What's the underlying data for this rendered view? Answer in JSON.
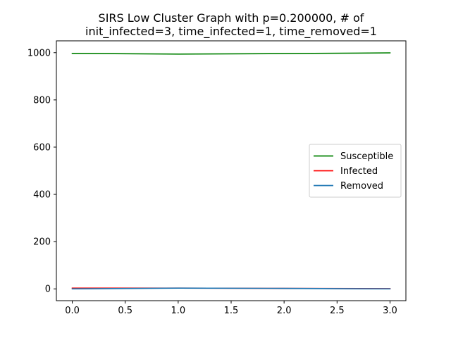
{
  "chart_data": {
    "type": "line",
    "title_lines": [
      "SIRS Low Cluster Graph with p=0.200000, # of",
      "init_infected=3, time_infected=1, time_removed=1"
    ],
    "xlabel": "",
    "ylabel": "",
    "x": [
      0,
      1,
      2,
      3
    ],
    "xlim": [
      -0.15,
      3.15
    ],
    "ylim": [
      -50,
      1050
    ],
    "x_ticks": [
      0,
      0.5,
      1,
      1.5,
      2,
      2.5,
      3
    ],
    "x_tick_labels": [
      "0.0",
      "0.5",
      "1.0",
      "1.5",
      "2.0",
      "2.5",
      "3.0"
    ],
    "y_ticks": [
      0,
      200,
      400,
      600,
      800,
      1000
    ],
    "y_tick_labels": [
      "0",
      "200",
      "400",
      "600",
      "800",
      "1000"
    ],
    "grid": false,
    "legend_position": "center-right",
    "series": [
      {
        "name": "Susceptible",
        "color": "#008000",
        "values": [
          997,
          994,
          996,
          999
        ]
      },
      {
        "name": "Infected",
        "color": "#ff0000",
        "values": [
          3,
          3,
          2,
          1
        ]
      },
      {
        "name": "Removed",
        "color": "#1f77b4",
        "values": [
          0,
          3,
          2,
          0
        ]
      }
    ]
  }
}
